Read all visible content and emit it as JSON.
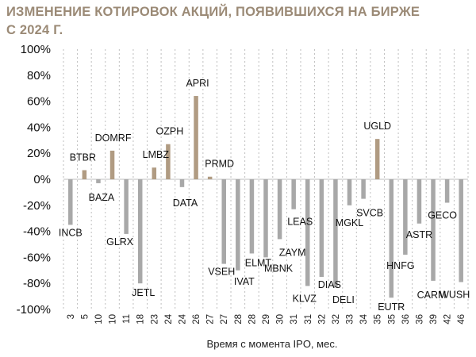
{
  "chart_data": {
    "type": "bar",
    "title_lines": [
      "ИЗМЕНЕНИЕ КОТИРОВОК АКЦИЙ, ПОЯВИВШИХСЯ НА БИРЖЕ",
      "С 2024 Г."
    ],
    "xlabel": "Время с момента IPO, мес.",
    "ylabel": "",
    "ylim": [
      -100,
      100
    ],
    "y_ticks": [
      "100%",
      "80%",
      "60%",
      "40%",
      "20%",
      "0%",
      "-20%",
      "-40%",
      "-60%",
      "-80%",
      "-100%"
    ],
    "grid": "vertical-dotted",
    "colors": {
      "highlight": "#b09b82",
      "normal": "#a8a8a8",
      "title": "#9b8a76"
    },
    "bars": [
      {
        "x": "3",
        "ticker": "INCB",
        "value": -35,
        "highlight": false
      },
      {
        "x": "5",
        "ticker": "BTBR",
        "value": 7,
        "highlight": true
      },
      {
        "x": "10",
        "ticker": "BAZA",
        "value": -3,
        "highlight": false
      },
      {
        "x": "10",
        "ticker": "DOMRF",
        "value": 22,
        "highlight": true
      },
      {
        "x": "11",
        "ticker": "GLRX",
        "value": -42,
        "highlight": false
      },
      {
        "x": "18",
        "ticker": "JETL",
        "value": -80,
        "highlight": false
      },
      {
        "x": "23",
        "ticker": "LMBZ",
        "value": 9,
        "highlight": true
      },
      {
        "x": "24",
        "ticker": "OZPH",
        "value": 27,
        "highlight": true
      },
      {
        "x": "24",
        "ticker": "DATA",
        "value": -6,
        "highlight": false
      },
      {
        "x": "26",
        "ticker": "APRI",
        "value": 64,
        "highlight": true
      },
      {
        "x": "27",
        "ticker": "PRMD",
        "value": 2,
        "highlight": true
      },
      {
        "x": "27",
        "ticker": "VSEH",
        "value": -65,
        "highlight": false
      },
      {
        "x": "28",
        "ticker": "IVAT",
        "value": -70,
        "highlight": false
      },
      {
        "x": "28",
        "ticker": "ELMT",
        "value": -57,
        "highlight": false
      },
      {
        "x": "29",
        "ticker": "MBNK",
        "value": -60,
        "highlight": false
      },
      {
        "x": "30",
        "ticker": "ZAYM",
        "value": -46,
        "highlight": false
      },
      {
        "x": "31",
        "ticker": "LEAS",
        "value": -23,
        "highlight": false
      },
      {
        "x": "31",
        "ticker": "KLVZ",
        "value": -82,
        "highlight": false
      },
      {
        "x": "32",
        "ticker": "DIAS",
        "value": -75,
        "highlight": false
      },
      {
        "x": "32",
        "ticker": "DELI",
        "value": -83,
        "highlight": false
      },
      {
        "x": "33",
        "ticker": "MGKL",
        "value": -20,
        "highlight": false
      },
      {
        "x": "34",
        "ticker": "SVCB",
        "value": -15,
        "highlight": false
      },
      {
        "x": "35",
        "ticker": "UGLD",
        "value": 31,
        "highlight": true
      },
      {
        "x": "35",
        "ticker": "EUTR",
        "value": -91,
        "highlight": false
      },
      {
        "x": "36",
        "ticker": "HNFG",
        "value": -58,
        "highlight": false
      },
      {
        "x": "36",
        "ticker": "ASTR",
        "value": -34,
        "highlight": false
      },
      {
        "x": "39",
        "ticker": "CARM",
        "value": -78,
        "highlight": false
      },
      {
        "x": "42",
        "ticker": "GECO",
        "value": -18,
        "highlight": false
      },
      {
        "x": "46",
        "ticker": "WUSH",
        "value": -79,
        "highlight": false
      }
    ]
  }
}
